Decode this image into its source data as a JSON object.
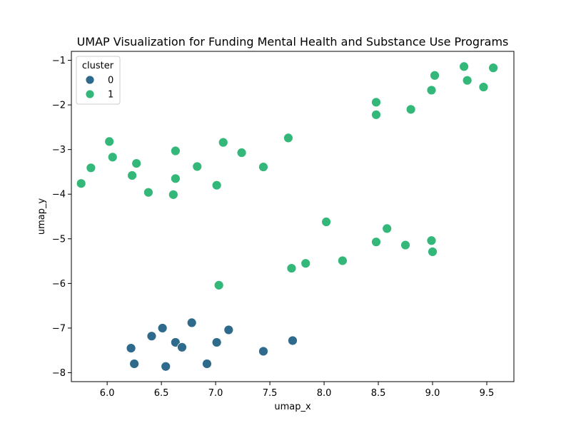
{
  "chart_data": {
    "type": "scatter",
    "title": "UMAP Visualization for Funding Mental Health and Substance Use Programs",
    "xlabel": "umap_x",
    "ylabel": "umap_y",
    "xlim": [
      5.67,
      9.75
    ],
    "ylim": [
      -8.2,
      -0.8
    ],
    "x_ticks": [
      6.0,
      6.5,
      7.0,
      7.5,
      8.0,
      8.5,
      9.0,
      9.5
    ],
    "y_ticks": [
      -1,
      -2,
      -3,
      -4,
      -5,
      -6,
      -7,
      -8
    ],
    "x_tick_labels": [
      "6.0",
      "6.5",
      "7.0",
      "7.5",
      "8.0",
      "8.5",
      "9.0",
      "9.5"
    ],
    "y_tick_labels": [
      "−1",
      "−2",
      "−3",
      "−4",
      "−5",
      "−6",
      "−7",
      "−8"
    ],
    "grid": false,
    "legend": {
      "title": "cluster",
      "placement": "upper-left",
      "entries": [
        {
          "label": "0",
          "color": "#2d6a8c"
        },
        {
          "label": "1",
          "color": "#33b87a"
        }
      ]
    },
    "series": [
      {
        "name": "0",
        "color": "#2d6a8c",
        "points": [
          [
            6.22,
            -7.45
          ],
          [
            6.25,
            -7.8
          ],
          [
            6.41,
            -7.18
          ],
          [
            6.51,
            -7.0
          ],
          [
            6.54,
            -7.86
          ],
          [
            6.63,
            -7.32
          ],
          [
            6.69,
            -7.43
          ],
          [
            6.78,
            -6.88
          ],
          [
            6.92,
            -7.8
          ],
          [
            7.01,
            -7.32
          ],
          [
            7.12,
            -7.04
          ],
          [
            7.44,
            -7.52
          ],
          [
            7.71,
            -7.28
          ]
        ]
      },
      {
        "name": "1",
        "color": "#33b87a",
        "points": [
          [
            5.76,
            -3.76
          ],
          [
            5.85,
            -3.41
          ],
          [
            6.02,
            -2.82
          ],
          [
            6.05,
            -3.17
          ],
          [
            6.23,
            -3.58
          ],
          [
            6.27,
            -3.31
          ],
          [
            6.38,
            -3.96
          ],
          [
            6.61,
            -4.01
          ],
          [
            6.63,
            -3.03
          ],
          [
            6.63,
            -3.65
          ],
          [
            6.83,
            -3.38
          ],
          [
            7.01,
            -3.8
          ],
          [
            7.07,
            -2.84
          ],
          [
            7.24,
            -3.07
          ],
          [
            7.44,
            -3.39
          ],
          [
            7.67,
            -2.74
          ],
          [
            7.03,
            -6.04
          ],
          [
            7.7,
            -5.66
          ],
          [
            7.83,
            -5.55
          ],
          [
            8.02,
            -4.62
          ],
          [
            8.17,
            -5.49
          ],
          [
            8.48,
            -5.07
          ],
          [
            8.58,
            -4.77
          ],
          [
            8.75,
            -5.14
          ],
          [
            8.99,
            -5.04
          ],
          [
            9.0,
            -5.29
          ],
          [
            8.48,
            -1.94
          ],
          [
            8.48,
            -2.22
          ],
          [
            8.8,
            -2.1
          ],
          [
            8.99,
            -1.67
          ],
          [
            9.02,
            -1.34
          ],
          [
            9.29,
            -1.14
          ],
          [
            9.32,
            -1.45
          ],
          [
            9.47,
            -1.6
          ],
          [
            9.56,
            -1.17
          ]
        ]
      }
    ]
  }
}
